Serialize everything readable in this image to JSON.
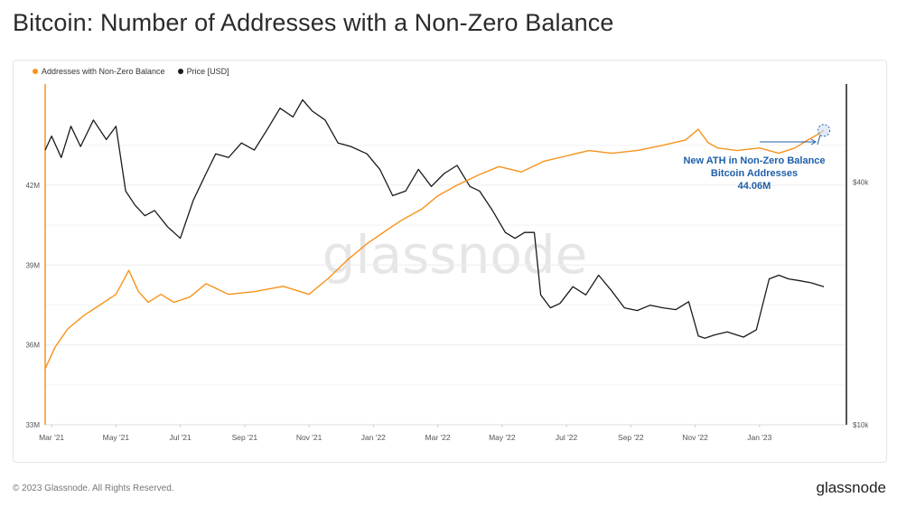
{
  "page": {
    "title": "Bitcoin: Number of Addresses with a Non-Zero Balance",
    "copyright": "© 2023 Glassnode. All Rights Reserved.",
    "brand": "glassnode",
    "watermark": "glassnode"
  },
  "colors": {
    "addresses": "#f7931a",
    "price": "#1a1a1a",
    "annotation": "#1f5fa8",
    "grid": "#ececec",
    "axis_text": "#555555"
  },
  "chart_data": {
    "type": "line",
    "title": "Bitcoin: Number of Addresses with a Non-Zero Balance",
    "x_ticks": [
      "Mar '21",
      "May '21",
      "Jul '21",
      "Sep '21",
      "Nov '21",
      "Jan '22",
      "Mar '22",
      "May '22",
      "Jul '22",
      "Sep '22",
      "Nov '22",
      "Jan '23"
    ],
    "x_tick_months": [
      2,
      4,
      6,
      8,
      10,
      12,
      14,
      16,
      18,
      20,
      22,
      24
    ],
    "xlim_months": [
      1.8,
      26.7
    ],
    "y_left": {
      "label": "Addresses with Non-Zero Balance",
      "ticks": [
        "33M",
        "36M",
        "39M",
        "42M"
      ],
      "tick_values": [
        33,
        36,
        39,
        42
      ],
      "range": [
        33,
        45.8
      ]
    },
    "y_right": {
      "label": "Price [USD]",
      "scale": "log",
      "ticks": [
        "$10k",
        "$40k"
      ],
      "tick_values": [
        10000,
        40000
      ],
      "range": [
        10000,
        70000
      ]
    },
    "legend": [
      {
        "name": "Addresses with Non-Zero Balance",
        "color_key": "addresses"
      },
      {
        "name": "Price [USD]",
        "color_key": "price"
      }
    ],
    "series": [
      {
        "name": "Addresses with Non-Zero Balance",
        "axis": "left",
        "unit": "M",
        "x_months": [
          1.8,
          2.1,
          2.5,
          3.0,
          3.5,
          4.0,
          4.4,
          4.7,
          5.0,
          5.4,
          5.8,
          6.3,
          6.8,
          7.5,
          8.3,
          9.2,
          10.0,
          10.6,
          11.2,
          11.8,
          12.4,
          12.9,
          13.5,
          14.0,
          14.6,
          15.3,
          15.9,
          16.6,
          17.3,
          18.0,
          18.7,
          19.4,
          20.2,
          21.0,
          21.7,
          22.1,
          22.4,
          22.7,
          23.3,
          24.0,
          24.6,
          25.1,
          25.5,
          25.8,
          26.0
        ],
        "values": [
          35.1,
          35.9,
          36.6,
          37.1,
          37.5,
          37.9,
          38.8,
          38.0,
          37.6,
          37.9,
          37.6,
          37.8,
          38.3,
          37.9,
          38.0,
          38.2,
          37.9,
          38.5,
          39.2,
          39.8,
          40.3,
          40.7,
          41.1,
          41.6,
          42.0,
          42.4,
          42.7,
          42.5,
          42.9,
          43.1,
          43.3,
          43.2,
          43.3,
          43.5,
          43.7,
          44.1,
          43.6,
          43.4,
          43.3,
          43.4,
          43.2,
          43.4,
          43.7,
          43.9,
          44.06
        ]
      },
      {
        "name": "Price [USD]",
        "axis": "right",
        "unit": "USD",
        "x_months": [
          1.8,
          2.0,
          2.3,
          2.6,
          2.9,
          3.3,
          3.7,
          4.0,
          4.3,
          4.6,
          4.9,
          5.2,
          5.6,
          6.0,
          6.4,
          6.8,
          7.1,
          7.5,
          7.9,
          8.3,
          8.7,
          9.1,
          9.5,
          9.8,
          10.1,
          10.5,
          10.9,
          11.3,
          11.8,
          12.2,
          12.6,
          13.0,
          13.4,
          13.8,
          14.2,
          14.6,
          15.0,
          15.3,
          15.7,
          16.1,
          16.4,
          16.7,
          17.0,
          17.2,
          17.5,
          17.8,
          18.2,
          18.6,
          19.0,
          19.4,
          19.8,
          20.2,
          20.6,
          21.0,
          21.4,
          21.8,
          22.1,
          22.3,
          22.6,
          23.0,
          23.5,
          23.9,
          24.3,
          24.6,
          24.9,
          25.2,
          25.6,
          26.0
        ],
        "values": [
          48000,
          52000,
          46000,
          55000,
          49000,
          57000,
          51000,
          55000,
          38000,
          35000,
          33000,
          34000,
          31000,
          29000,
          36000,
          42000,
          47000,
          46000,
          50000,
          48000,
          54000,
          61000,
          58000,
          64000,
          60000,
          57000,
          50000,
          49000,
          47000,
          43000,
          37000,
          38000,
          43000,
          39000,
          42000,
          44000,
          39000,
          38000,
          34000,
          30000,
          29000,
          30000,
          30000,
          21000,
          19500,
          20000,
          22000,
          21000,
          23500,
          21500,
          19500,
          19200,
          19800,
          19500,
          19300,
          20200,
          16600,
          16400,
          16700,
          17000,
          16500,
          17200,
          23000,
          23500,
          23000,
          22800,
          22500,
          22000
        ]
      }
    ],
    "annotations": [
      {
        "text_lines": [
          "New ATH in Non-Zero Balance",
          "Bitcoin Addresses",
          "44.06M"
        ],
        "target_month": 26.0,
        "target_value": 44.06,
        "target_axis": "left"
      }
    ]
  }
}
